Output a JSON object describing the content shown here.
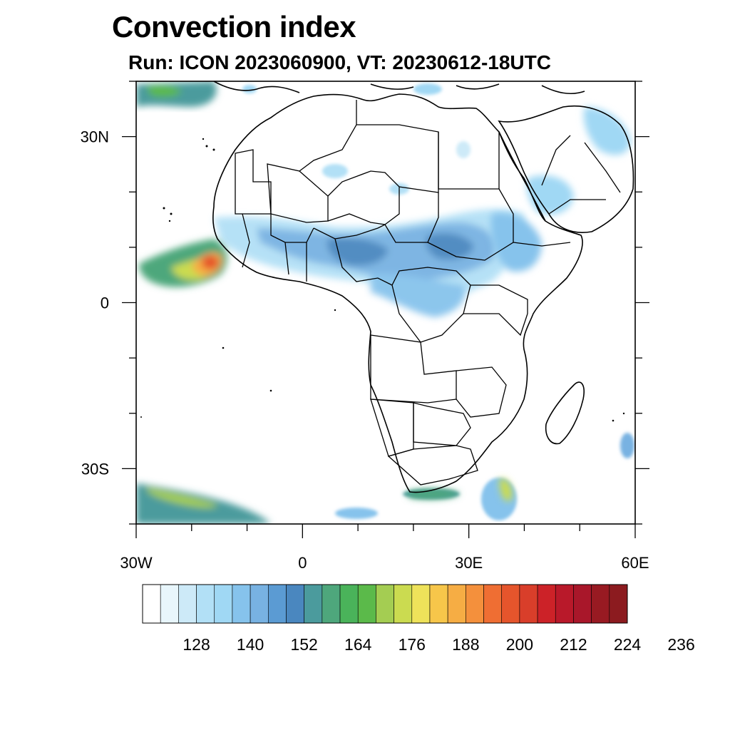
{
  "title": "Convection index",
  "subtitle": "Run: ICON 2023060900,  VT: 20230612-18UTC",
  "map": {
    "extent": {
      "lon": [
        -30,
        60
      ],
      "lat": [
        -40,
        40
      ]
    },
    "lat_ticks": [
      {
        "value": 30,
        "label": "30N"
      },
      {
        "value": 0,
        "label": "0"
      },
      {
        "value": -30,
        "label": "30S"
      }
    ],
    "lon_ticks": [
      {
        "value": -30,
        "label": "30W"
      },
      {
        "value": 0,
        "label": "0"
      },
      {
        "value": 30,
        "label": "30E"
      },
      {
        "value": 60,
        "label": "60E"
      }
    ],
    "minor_step_deg": 10,
    "ocean_color": "#ffffff",
    "land_border_color": "#000000"
  },
  "colorbar": {
    "colors": [
      "#ffffff",
      "#e8f6fc",
      "#cdeaf8",
      "#b2e0f6",
      "#a0d8f4",
      "#86c3ec",
      "#78b2e2",
      "#5b9bd3",
      "#4a87bf",
      "#4b9b9d",
      "#4ea77c",
      "#4ab35a",
      "#5bba4a",
      "#a4cd52",
      "#cbdb50",
      "#eee25a",
      "#f7c64a",
      "#f6ad44",
      "#f4903c",
      "#ef6e33",
      "#e5552c",
      "#d93e2a",
      "#cc2228",
      "#b9192a",
      "#a9172a",
      "#981a22",
      "#8c1b1f"
    ],
    "labels": [
      "128",
      "140",
      "152",
      "164",
      "176",
      "188",
      "200",
      "212",
      "224",
      "236"
    ]
  }
}
